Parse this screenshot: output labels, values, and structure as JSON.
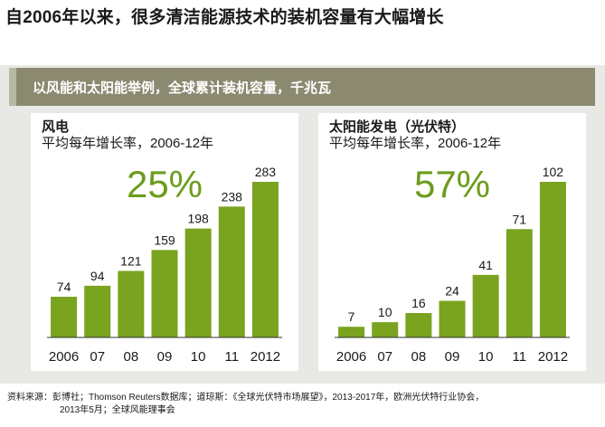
{
  "headline": "自2006年以来，很多清洁能源技术的装机容量有大幅增长",
  "subheader": "以风能和太阳能举例，全球累计装机容量，千兆瓦",
  "colors": {
    "bar": "#7aa31f",
    "rate": "#6c9c1c",
    "subheader": "#8b8a71"
  },
  "panels": [
    {
      "title": "风电",
      "subtitle": "平均每年增长率，2006-12年",
      "rate": "25%"
    },
    {
      "title": "太阳能发电（光伏特）",
      "subtitle": "平均每年增长率，2006-12年",
      "rate": "57%"
    }
  ],
  "chart_data": [
    {
      "type": "bar",
      "title": "风电",
      "categories": [
        "2006",
        "07",
        "08",
        "09",
        "10",
        "11",
        "2012"
      ],
      "values": [
        74,
        94,
        121,
        159,
        198,
        238,
        283
      ],
      "ylim": [
        0,
        283
      ]
    },
    {
      "type": "bar",
      "title": "太阳能发电（光伏特）",
      "categories": [
        "2006",
        "07",
        "08",
        "09",
        "10",
        "11",
        "2012"
      ],
      "values": [
        7,
        10,
        16,
        24,
        41,
        71,
        102
      ],
      "ylim": [
        0,
        102
      ]
    }
  ],
  "source": {
    "line1": "资料来源：彭博社；Thomson Reuters数据库；道琼斯：《全球光伏特市场展望》，2013-2017年，欧洲光伏特行业协会，",
    "line2": "2013年5月；全球风能理事会"
  }
}
